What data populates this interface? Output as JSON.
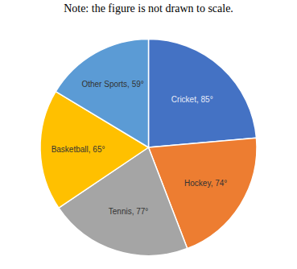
{
  "chart_data": {
    "type": "pie",
    "title": "Note: the figure is not drawn to scale.",
    "categories": [
      "Cricket",
      "Hockey",
      "Tennis",
      "Basketball",
      "Other Sports"
    ],
    "values": [
      85,
      74,
      77,
      65,
      59
    ],
    "value_labels": [
      "Cricket, 85°",
      "Hockey, 74°",
      "Tennis, 77°",
      "Basketball, 65°",
      "Other Sports, 59°"
    ],
    "colors": [
      "#4472c4",
      "#ed7d31",
      "#a5a5a5",
      "#ffc000",
      "#5b9bd5"
    ],
    "data_labels": true
  }
}
